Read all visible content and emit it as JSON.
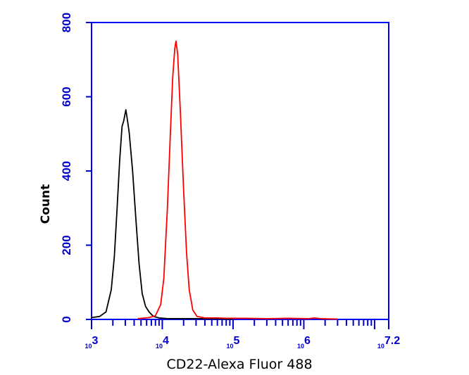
{
  "chart_data": {
    "type": "line",
    "title": "",
    "xlabel": "CD22-Alexa Fluor 488",
    "ylabel": "Count",
    "x_scale": "log",
    "xlim": [
      1000,
      15848932
    ],
    "ylim": [
      0,
      800
    ],
    "y_ticks": [
      0,
      200,
      400,
      600,
      800
    ],
    "x_tick_labels": [
      {
        "base": "10",
        "exp": "3"
      },
      {
        "base": "10",
        "exp": "4"
      },
      {
        "base": "10",
        "exp": "5"
      },
      {
        "base": "10",
        "exp": "6"
      },
      {
        "base": "10",
        "exp": "7.2"
      }
    ],
    "colors": {
      "axis": "#0000cc",
      "frame": "#0000ff"
    },
    "series": [
      {
        "color": "#000000",
        "points": [
          [
            1000,
            5
          ],
          [
            1300,
            8
          ],
          [
            1600,
            20
          ],
          [
            1900,
            80
          ],
          [
            2100,
            170
          ],
          [
            2300,
            300
          ],
          [
            2500,
            430
          ],
          [
            2700,
            520
          ],
          [
            2850,
            535
          ],
          [
            2950,
            550
          ],
          [
            3050,
            565
          ],
          [
            3150,
            548
          ],
          [
            3400,
            505
          ],
          [
            3800,
            400
          ],
          [
            4200,
            280
          ],
          [
            4700,
            150
          ],
          [
            5200,
            70
          ],
          [
            5800,
            35
          ],
          [
            6500,
            20
          ],
          [
            7500,
            8
          ],
          [
            9000,
            4
          ],
          [
            12000,
            2
          ],
          [
            20000,
            2
          ],
          [
            45000,
            2
          ],
          [
            100000,
            1
          ]
        ]
      },
      {
        "color": "#ff0000",
        "points": [
          [
            4500,
            2
          ],
          [
            6500,
            5
          ],
          [
            8000,
            10
          ],
          [
            9500,
            40
          ],
          [
            10500,
            110
          ],
          [
            11800,
            300
          ],
          [
            13000,
            500
          ],
          [
            14000,
            650
          ],
          [
            15000,
            730
          ],
          [
            15600,
            750
          ],
          [
            16500,
            715
          ],
          [
            18000,
            560
          ],
          [
            20000,
            350
          ],
          [
            22000,
            180
          ],
          [
            24000,
            80
          ],
          [
            27000,
            25
          ],
          [
            31000,
            8
          ],
          [
            40000,
            4
          ],
          [
            60000,
            4
          ],
          [
            80000,
            3
          ],
          [
            150000,
            3
          ],
          [
            300000,
            2
          ],
          [
            600000,
            3
          ],
          [
            1200000,
            2
          ],
          [
            1400000,
            4
          ],
          [
            1700000,
            2
          ],
          [
            3000000,
            1
          ]
        ]
      }
    ]
  }
}
